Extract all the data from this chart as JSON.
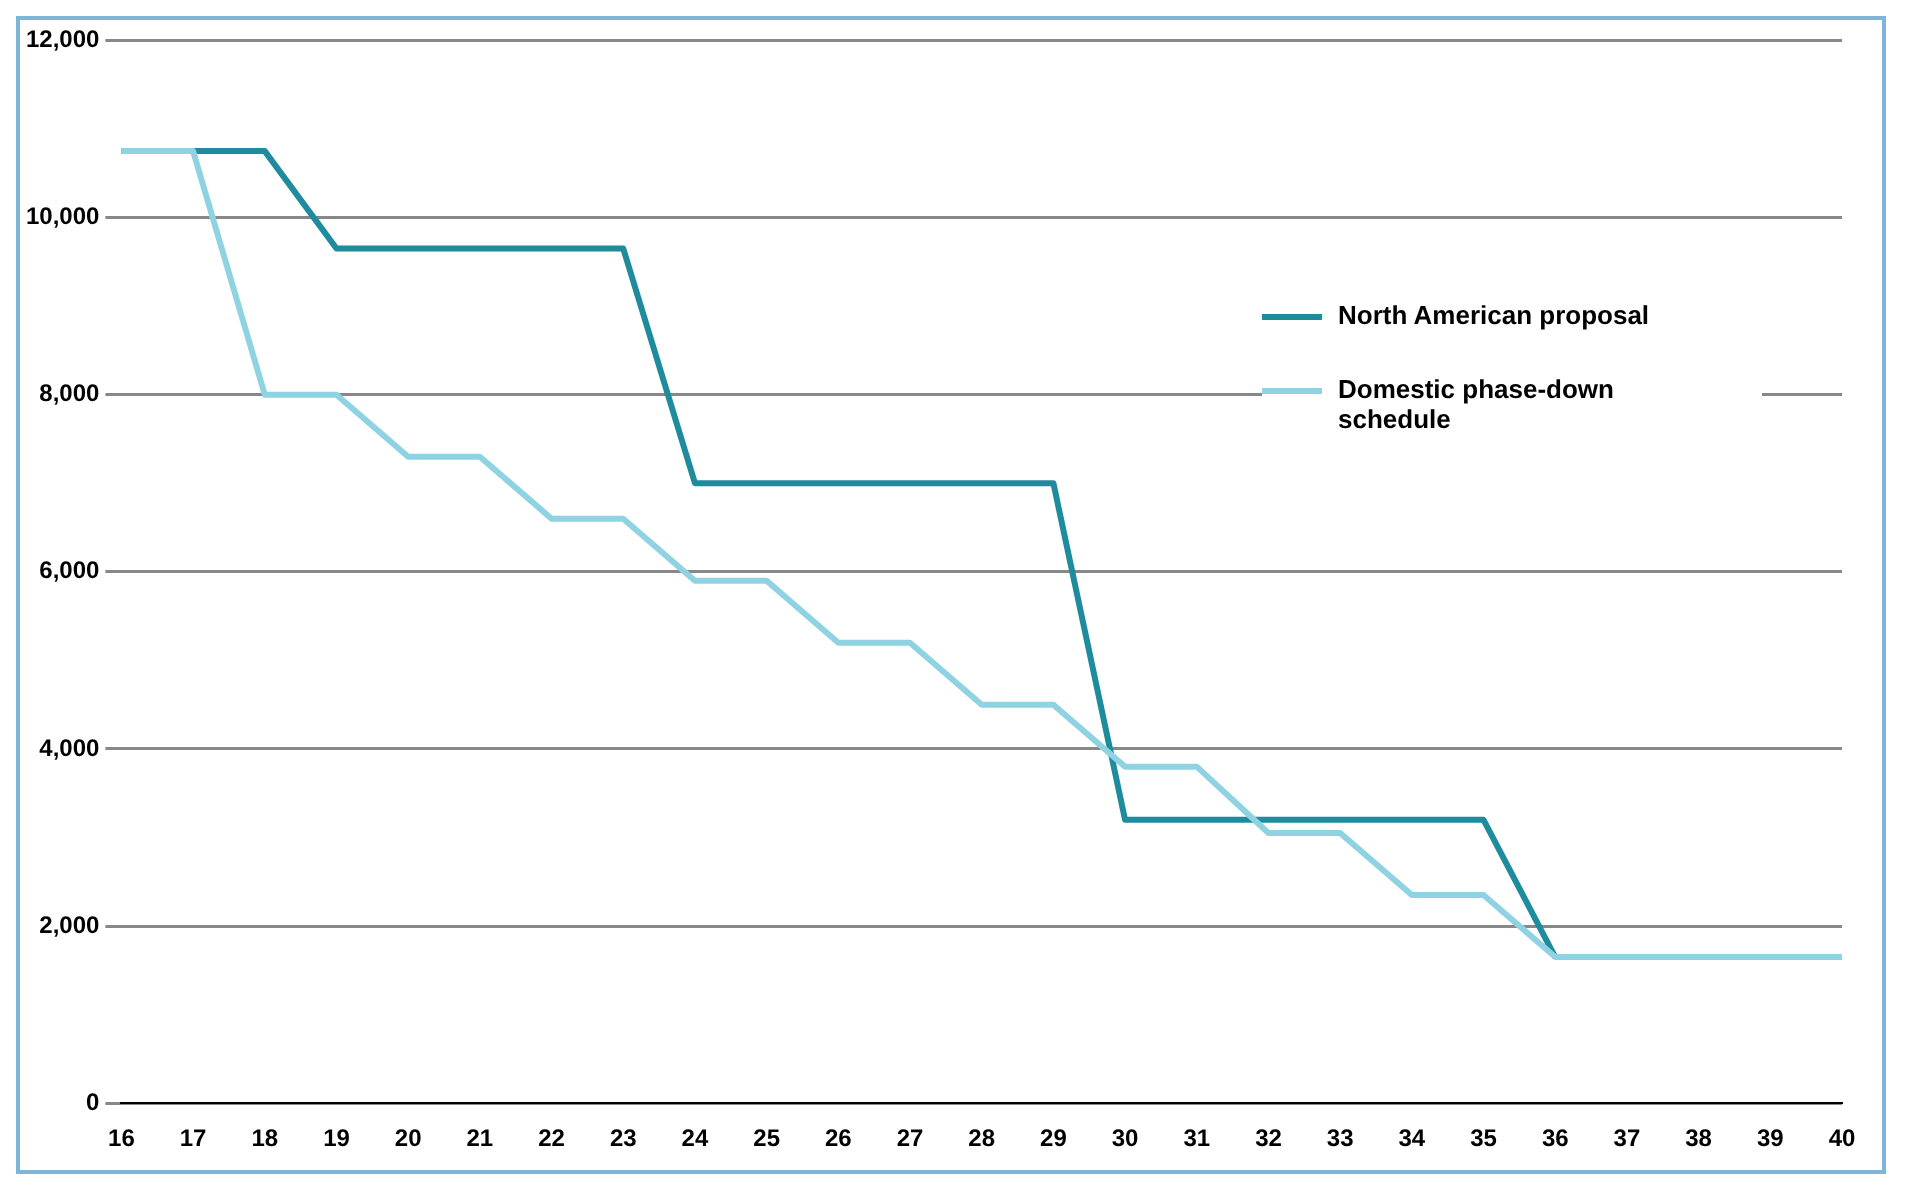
{
  "chart_data": {
    "type": "line",
    "categories": [
      "16",
      "17",
      "18",
      "19",
      "20",
      "21",
      "22",
      "23",
      "24",
      "25",
      "26",
      "27",
      "28",
      "29",
      "30",
      "31",
      "32",
      "33",
      "34",
      "35",
      "36",
      "37",
      "38",
      "39",
      "40"
    ],
    "series": [
      {
        "name": "North American proposal",
        "color": "#1e8c9c",
        "values": [
          10750,
          10750,
          10750,
          9650,
          9650,
          9650,
          9650,
          9650,
          7000,
          7000,
          7000,
          7000,
          7000,
          7000,
          3200,
          3200,
          3200,
          3200,
          3200,
          3200,
          1650,
          null,
          null,
          null,
          null
        ]
      },
      {
        "name": "Domestic phase-down schedule",
        "color": "#8fd3e3",
        "values": [
          10750,
          10750,
          8000,
          8000,
          7300,
          7300,
          6600,
          6600,
          5900,
          5900,
          5200,
          5200,
          4500,
          4500,
          3800,
          3800,
          3050,
          3050,
          2350,
          2350,
          1650,
          1650,
          1650,
          1650,
          1650
        ]
      }
    ],
    "ylim": [
      0,
      12000
    ],
    "yticks": [
      0,
      {
        "value": 2000,
        "label": "2,000"
      },
      {
        "value": 4000,
        "label": "4,000"
      },
      {
        "value": 6000,
        "label": "6,000"
      },
      {
        "value": 8000,
        "label": "8,000"
      },
      {
        "value": 10000,
        "label": "10,000"
      },
      {
        "value": 12000,
        "label": "12,000"
      }
    ],
    "grid": "y",
    "legend": "right",
    "marker": "none",
    "line_style": "solid"
  }
}
